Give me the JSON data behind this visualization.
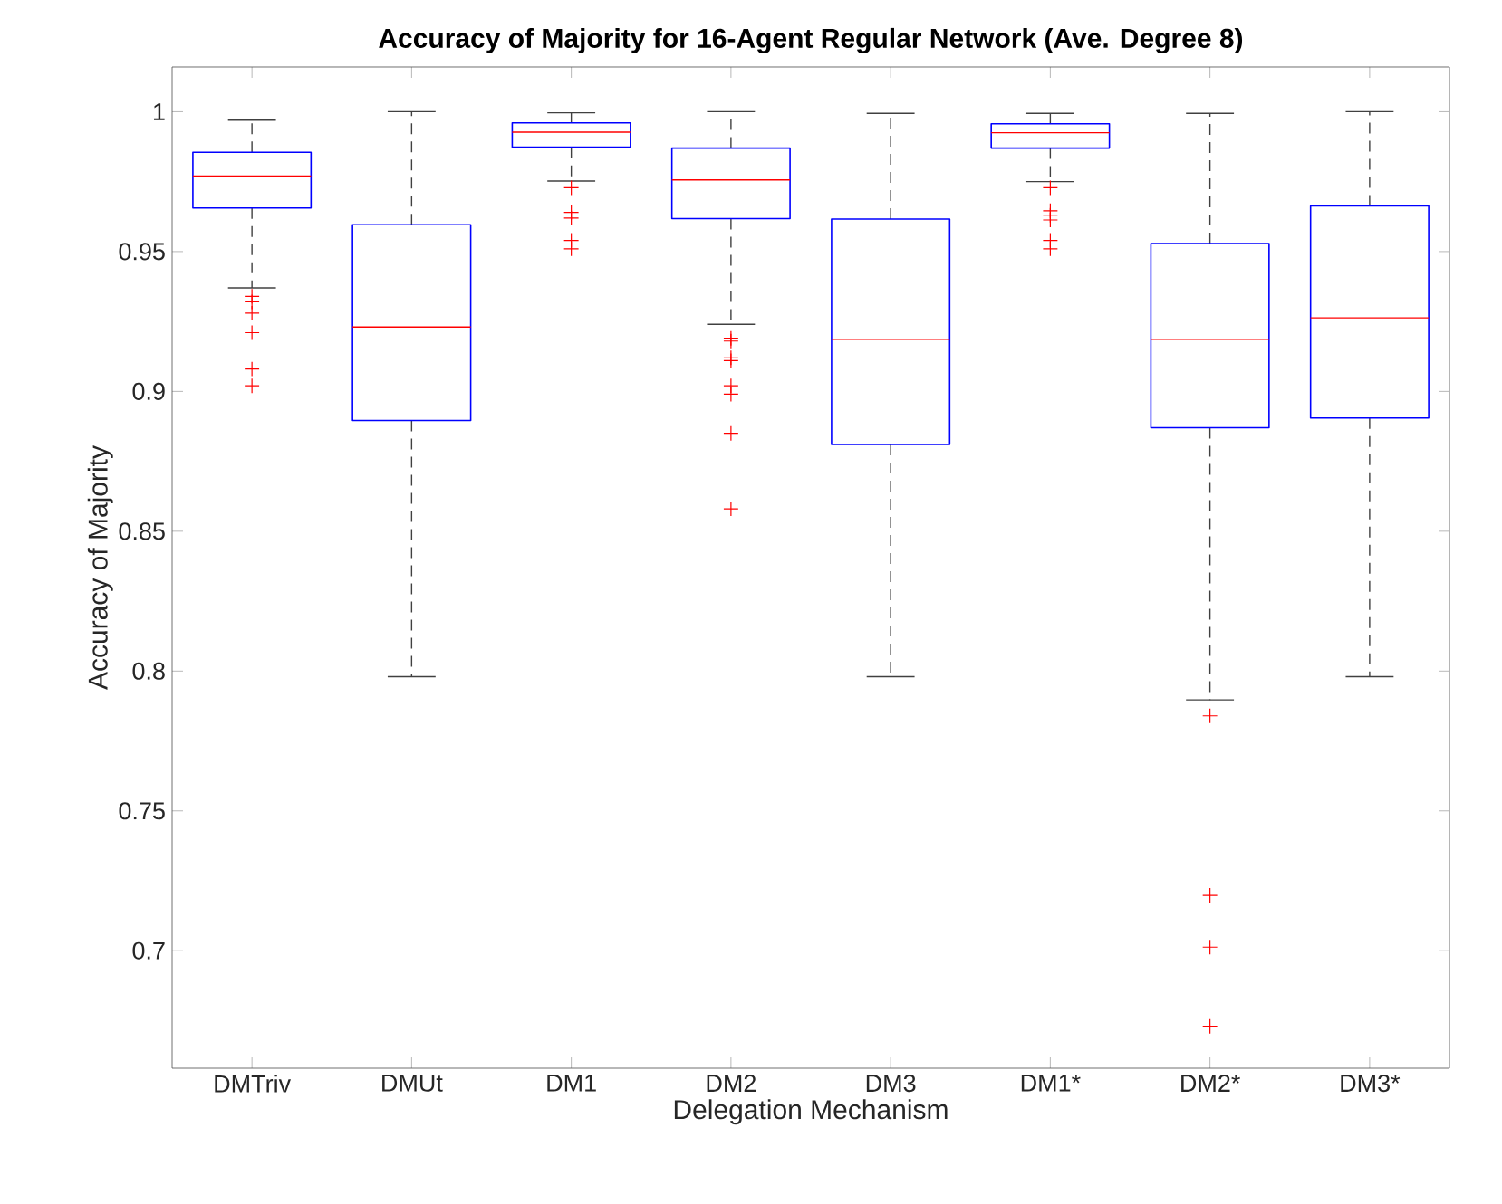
{
  "chart_data": {
    "type": "box",
    "title": "Accuracy of Majority for 16-Agent Regular Network (Ave. Degree 8)",
    "xlabel": "Delegation Mechanism",
    "ylabel": "Accuracy of Majority",
    "categories": [
      "DMTriv",
      "DMUt",
      "DM1",
      "DM2",
      "DM3",
      "DM1*",
      "DM2*",
      "DM3*"
    ],
    "color": "#0000ff",
    "boxes": [
      {
        "low": 0.937,
        "q1": 0.9656,
        "median": 0.977,
        "q3": 0.9855,
        "high": 0.997,
        "outliers": [
          0.934,
          0.932,
          0.928,
          0.921,
          0.908,
          0.902
        ]
      },
      {
        "low": 0.798,
        "q1": 0.8896,
        "median": 0.923,
        "q3": 0.9596,
        "high": 1.0
      },
      {
        "low": 0.9752,
        "q1": 0.9873,
        "median": 0.9927,
        "q3": 0.996,
        "high": 0.9996,
        "outliers": [
          0.9728,
          0.964,
          0.962,
          0.954,
          0.951
        ]
      },
      {
        "low": 0.924,
        "q1": 0.9618,
        "median": 0.9756,
        "q3": 0.987,
        "high": 1.0,
        "outliers": [
          0.919,
          0.918,
          0.912,
          0.911,
          0.902,
          0.899,
          0.885,
          0.858
        ]
      },
      {
        "low": 0.798,
        "q1": 0.881,
        "median": 0.9186,
        "q3": 0.9616,
        "high": 0.9994
      },
      {
        "low": 0.975,
        "q1": 0.987,
        "median": 0.9925,
        "q3": 0.9957,
        "high": 0.9994,
        "outliers": [
          0.9728,
          0.9646,
          0.963,
          0.9613,
          0.954,
          0.951
        ]
      },
      {
        "low": 0.7897,
        "q1": 0.887,
        "median": 0.9186,
        "q3": 0.9529,
        "high": 0.9994,
        "outliers": [
          0.784,
          0.7198,
          0.7013,
          0.673
        ]
      },
      {
        "low": 0.798,
        "q1": 0.8905,
        "median": 0.9263,
        "q3": 0.9663,
        "high": 1.0
      }
    ],
    "ylim": [
      0.658,
      1.016
    ],
    "yticks": [
      {
        "value": 0.7,
        "label": "0.7"
      },
      {
        "value": 0.75,
        "label": "0.75"
      },
      {
        "value": 0.8,
        "label": "0.8"
      },
      {
        "value": 0.85,
        "label": "0.85"
      },
      {
        "value": 0.9,
        "label": "0.9"
      },
      {
        "value": 0.95,
        "label": "0.95"
      },
      {
        "value": 1,
        "label": "1"
      }
    ],
    "grid": false
  }
}
